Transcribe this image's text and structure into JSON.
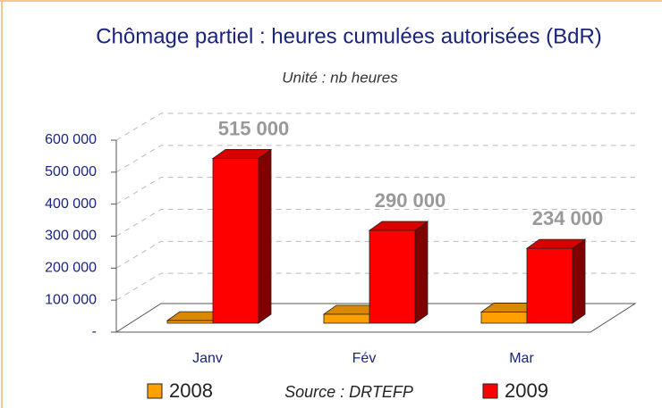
{
  "chart_data": {
    "type": "bar3d",
    "title": "Chômage partiel : heures cumulées autorisées (BdR)",
    "subtitle": "Unité : nb heures",
    "source": "Source : DRTEFP",
    "categories": [
      "Janv",
      "Fév",
      "Mar"
    ],
    "series": [
      {
        "name": "2008",
        "color": "#ffa000",
        "values": [
          8000,
          28000,
          35000
        ]
      },
      {
        "name": "2009",
        "color": "#ff0000",
        "values": [
          515000,
          290000,
          234000
        ],
        "value_labels": [
          "515 000",
          "290 000",
          "234 000"
        ]
      }
    ],
    "ylim": [
      0,
      600000
    ],
    "yticks": [
      {
        "value": 0,
        "label": "-"
      },
      {
        "value": 100000,
        "label": "100 000"
      },
      {
        "value": 200000,
        "label": "200 000"
      },
      {
        "value": 300000,
        "label": "300 000"
      },
      {
        "value": 400000,
        "label": "400 000"
      },
      {
        "value": 500000,
        "label": "500 000"
      },
      {
        "value": 600000,
        "label": "600 000"
      }
    ],
    "grid": true
  }
}
